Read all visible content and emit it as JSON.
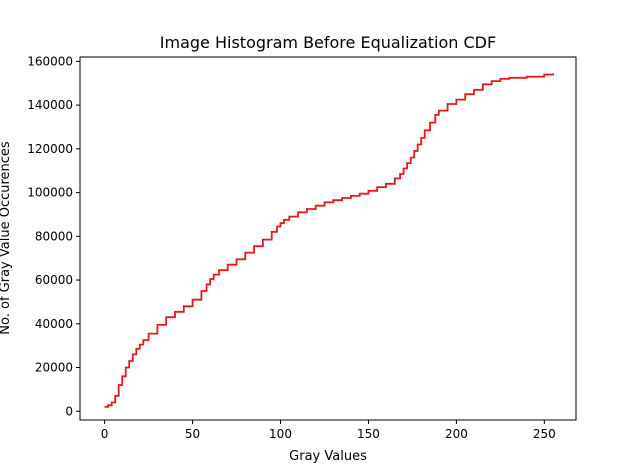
{
  "chart_data": {
    "type": "line",
    "title": "Image Histogram Before Equalization CDF",
    "xlabel": "Gray Values",
    "ylabel": "No. of Gray Value Occurences",
    "xlim": [
      -14,
      268
    ],
    "ylim": [
      -4000,
      162000
    ],
    "xticks": [
      0,
      50,
      100,
      150,
      200,
      250
    ],
    "yticks": [
      0,
      20000,
      40000,
      60000,
      80000,
      100000,
      120000,
      140000,
      160000
    ],
    "grid": false,
    "series": [
      {
        "color": "#e31a1c",
        "x": [
          0,
          2,
          4,
          6,
          8,
          10,
          12,
          14,
          16,
          18,
          20,
          22,
          25,
          30,
          35,
          40,
          45,
          50,
          55,
          58,
          60,
          62,
          65,
          70,
          75,
          80,
          85,
          90,
          95,
          98,
          100,
          102,
          105,
          110,
          115,
          120,
          125,
          130,
          135,
          140,
          145,
          150,
          155,
          160,
          165,
          168,
          170,
          172,
          174,
          176,
          178,
          180,
          182,
          185,
          188,
          190,
          195,
          200,
          205,
          210,
          215,
          220,
          225,
          230,
          240,
          250,
          255
        ],
        "values": [
          2000,
          2700,
          4000,
          7000,
          12000,
          16000,
          20000,
          23000,
          26000,
          28500,
          30500,
          32500,
          35500,
          39500,
          43000,
          45500,
          48000,
          51000,
          55000,
          58000,
          60500,
          62500,
          64500,
          67000,
          69500,
          72500,
          75500,
          78500,
          82000,
          84500,
          86000,
          87500,
          89000,
          91000,
          92500,
          94000,
          95500,
          96500,
          97500,
          98500,
          99500,
          100800,
          102500,
          104000,
          106500,
          108500,
          111000,
          113500,
          116000,
          119000,
          122000,
          125000,
          128500,
          132000,
          135500,
          137500,
          140500,
          142500,
          145000,
          147000,
          149500,
          151000,
          152000,
          152500,
          153000,
          154000,
          154500
        ]
      }
    ]
  }
}
